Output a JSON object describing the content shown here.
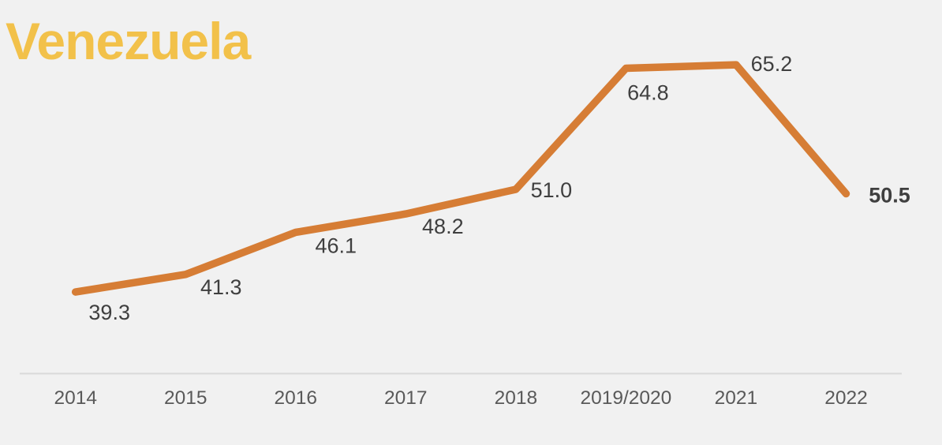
{
  "page": {
    "background_color": "#F1F1F1"
  },
  "chart_data": {
    "type": "line",
    "title": "Venezuela",
    "title_color": "#F2C14A",
    "categories": [
      "2014",
      "2015",
      "2016",
      "2017",
      "2018",
      "2019/2020",
      "2021",
      "2022"
    ],
    "series": [
      {
        "name": "Venezuela",
        "values": [
          39.3,
          41.3,
          46.1,
          48.2,
          51.0,
          64.8,
          65.2,
          50.5
        ],
        "value_labels": [
          "39.3",
          "41.3",
          "46.1",
          "48.2",
          "51.0",
          "64.8",
          "65.2",
          "50.5"
        ]
      }
    ],
    "bold_label_index": 7,
    "line_color": "#D67D35",
    "data_label_color": "#3F3F3F",
    "axis_label_color": "#595959",
    "axis_line_color": "#D9D9D9",
    "ylim": [
      30,
      70
    ],
    "xlabel": "",
    "ylabel": "",
    "grid": false,
    "legend_position": "none"
  }
}
